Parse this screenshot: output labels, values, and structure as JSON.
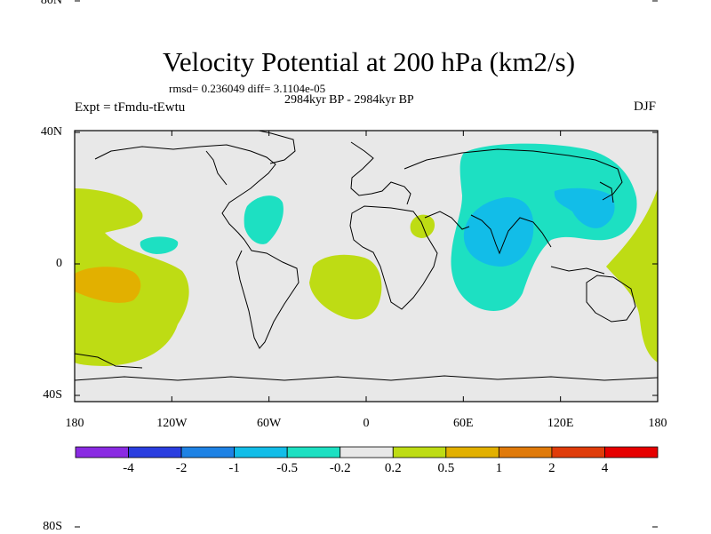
{
  "title": "Velocity Potential at 200 hPa (km2/s)",
  "stats_line": "rmsd= 0.236049 diff= 3.1104e-05",
  "period": "2984kyr BP - 2984kyr BP",
  "experiment": "Expt = tFmdu-tEwtu",
  "season": "DJF",
  "latitude_ticks": [
    {
      "label": "80N",
      "lat": 80
    },
    {
      "label": "40N",
      "lat": 40
    },
    {
      "label": "0",
      "lat": 0
    },
    {
      "label": "40S",
      "lat": -40
    },
    {
      "label": "80S",
      "lat": -80
    }
  ],
  "longitude_ticks": [
    {
      "label": "180",
      "lon": -180
    },
    {
      "label": "120W",
      "lon": -120
    },
    {
      "label": "60W",
      "lon": -60
    },
    {
      "label": "0",
      "lon": 0
    },
    {
      "label": "60E",
      "lon": 60
    },
    {
      "label": "120E",
      "lon": 120
    },
    {
      "label": "180",
      "lon": 180
    }
  ],
  "colorbar": {
    "colors": [
      "#8a2be2",
      "#2a3ee0",
      "#1e82e4",
      "#12bde8",
      "#1de0c2",
      "#e8e8e8",
      "#bedc14",
      "#e2b000",
      "#e07a0a",
      "#e03c0a",
      "#e60000"
    ],
    "labels": [
      "-4",
      "-2",
      "-1",
      "-0.5",
      "-0.2",
      "0.2",
      "0.5",
      "1",
      "2",
      "4"
    ]
  },
  "field": {
    "background_color": "#e8e8e8",
    "anomaly_regions": [
      {
        "level": "0.2 to 0.5",
        "color": "#bedc14",
        "region": "central-east Pacific"
      },
      {
        "level": "0.5 to 1",
        "color": "#e2b000",
        "region": "central Pacific near equator"
      },
      {
        "level": "0.2 to 0.5",
        "color": "#bedc14",
        "region": "equatorial Atlantic"
      },
      {
        "level": "0.2 to 0.5",
        "color": "#bedc14",
        "region": "Red Sea / East Africa"
      },
      {
        "level": "0.2 to 0.5",
        "color": "#bedc14",
        "region": "western Pacific / Australia east"
      },
      {
        "level": "-0.5 to -0.2",
        "color": "#1de0c2",
        "region": "Asia and Indian Ocean"
      },
      {
        "level": "-1 to -0.5",
        "color": "#12bde8",
        "region": "India / Arabian Sea"
      },
      {
        "level": "-1 to -0.5",
        "color": "#12bde8",
        "region": "East Asia / Japan"
      },
      {
        "level": "-0.5 to -0.2",
        "color": "#1de0c2",
        "region": "Caribbean"
      },
      {
        "level": "-0.5 to -0.2",
        "color": "#1de0c2",
        "region": "eastern tropical Pacific"
      }
    ]
  }
}
